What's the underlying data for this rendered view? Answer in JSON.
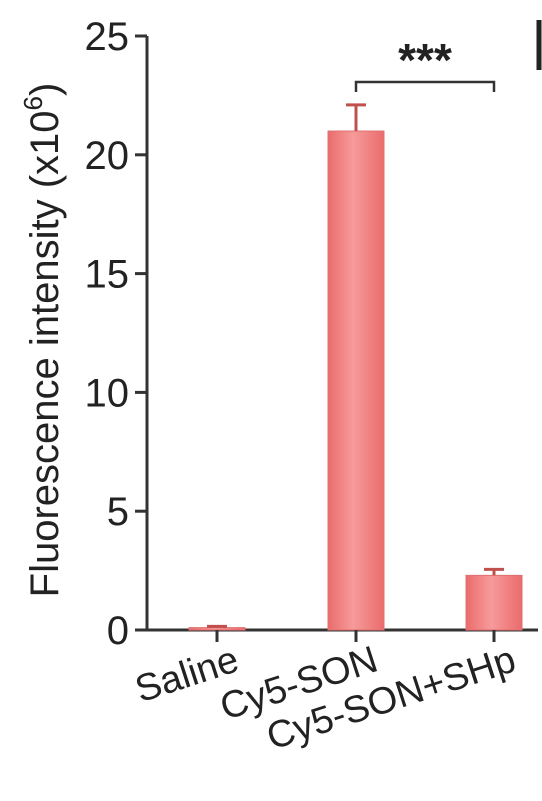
{
  "chart_data": {
    "type": "bar",
    "categories": [
      "Saline",
      "Cy5-SON",
      "Cy5-SON+SHp"
    ],
    "values": [
      0.1,
      21.0,
      2.3
    ],
    "errors": [
      0.05,
      1.1,
      0.25
    ],
    "ylabel": "Fluorescence intensity (x10",
    "ylabel_superscript": "6",
    "ylabel_close": ")",
    "xlabel": "",
    "ylim": [
      0,
      25
    ],
    "yticks": [
      0,
      5,
      10,
      15,
      20,
      25
    ],
    "significance": {
      "from": "Cy5-SON",
      "to": "Cy5-SON+SHp",
      "label": "***"
    },
    "bar_color": "#f07f7f",
    "error_color": "#c0504d"
  }
}
